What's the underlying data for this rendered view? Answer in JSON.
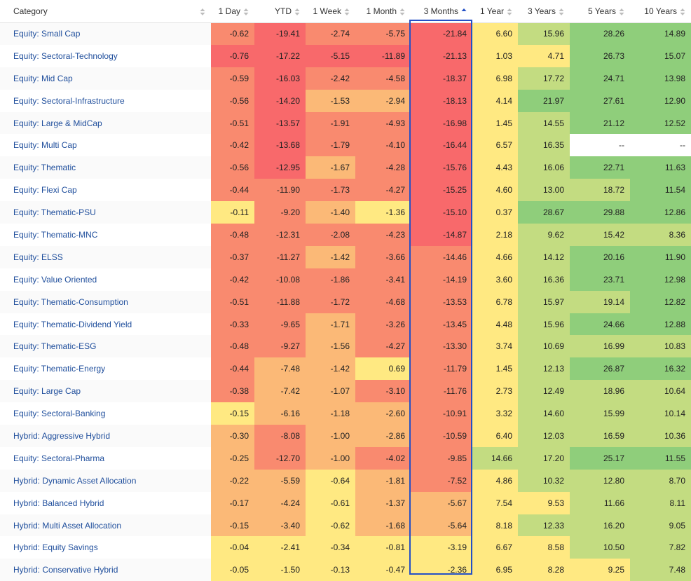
{
  "columns": [
    {
      "key": "category",
      "label": "Category",
      "sort": "none"
    },
    {
      "key": "d1",
      "label": "1 Day",
      "sort": "none"
    },
    {
      "key": "ytd",
      "label": "YTD",
      "sort": "none"
    },
    {
      "key": "w1",
      "label": "1 Week",
      "sort": "none"
    },
    {
      "key": "m1",
      "label": "1 Month",
      "sort": "none"
    },
    {
      "key": "m3",
      "label": "3 Months",
      "sort": "asc"
    },
    {
      "key": "y1",
      "label": "1 Year",
      "sort": "none"
    },
    {
      "key": "y3",
      "label": "3 Years",
      "sort": "none"
    },
    {
      "key": "y5",
      "label": "5 Years",
      "sort": "none"
    },
    {
      "key": "y10",
      "label": "10 Years",
      "sort": "none"
    }
  ],
  "heat_colors": {
    "red": "#f8696b",
    "red_mid": "#f98a6f",
    "orange": "#fbb977",
    "yellow": "#ffe982",
    "lightgreen": "#c3dc81",
    "green": "#8fce7b",
    "blank": "#ffffff"
  },
  "rows": [
    {
      "category": "Equity: Small Cap",
      "cells": [
        {
          "v": "-0.62",
          "c": "red_mid"
        },
        {
          "v": "-19.41",
          "c": "red"
        },
        {
          "v": "-2.74",
          "c": "red_mid"
        },
        {
          "v": "-5.75",
          "c": "red_mid"
        },
        {
          "v": "-21.84",
          "c": "red"
        },
        {
          "v": "6.60",
          "c": "yellow"
        },
        {
          "v": "15.96",
          "c": "lightgreen"
        },
        {
          "v": "28.26",
          "c": "green"
        },
        {
          "v": "14.89",
          "c": "green"
        }
      ]
    },
    {
      "category": "Equity: Sectoral-Technology",
      "cells": [
        {
          "v": "-0.76",
          "c": "red"
        },
        {
          "v": "-17.22",
          "c": "red"
        },
        {
          "v": "-5.15",
          "c": "red"
        },
        {
          "v": "-11.89",
          "c": "red"
        },
        {
          "v": "-21.13",
          "c": "red"
        },
        {
          "v": "1.03",
          "c": "yellow"
        },
        {
          "v": "4.71",
          "c": "yellow"
        },
        {
          "v": "26.73",
          "c": "green"
        },
        {
          "v": "15.07",
          "c": "green"
        }
      ]
    },
    {
      "category": "Equity: Mid Cap",
      "cells": [
        {
          "v": "-0.59",
          "c": "red_mid"
        },
        {
          "v": "-16.03",
          "c": "red"
        },
        {
          "v": "-2.42",
          "c": "red_mid"
        },
        {
          "v": "-4.58",
          "c": "red_mid"
        },
        {
          "v": "-18.37",
          "c": "red"
        },
        {
          "v": "6.98",
          "c": "yellow"
        },
        {
          "v": "17.72",
          "c": "lightgreen"
        },
        {
          "v": "24.71",
          "c": "green"
        },
        {
          "v": "13.98",
          "c": "green"
        }
      ]
    },
    {
      "category": "Equity: Sectoral-Infrastructure",
      "cells": [
        {
          "v": "-0.56",
          "c": "red_mid"
        },
        {
          "v": "-14.20",
          "c": "red"
        },
        {
          "v": "-1.53",
          "c": "orange"
        },
        {
          "v": "-2.94",
          "c": "orange"
        },
        {
          "v": "-18.13",
          "c": "red"
        },
        {
          "v": "4.14",
          "c": "yellow"
        },
        {
          "v": "21.97",
          "c": "green"
        },
        {
          "v": "27.61",
          "c": "green"
        },
        {
          "v": "12.90",
          "c": "green"
        }
      ]
    },
    {
      "category": "Equity: Large & MidCap",
      "cells": [
        {
          "v": "-0.51",
          "c": "red_mid"
        },
        {
          "v": "-13.57",
          "c": "red"
        },
        {
          "v": "-1.91",
          "c": "red_mid"
        },
        {
          "v": "-4.93",
          "c": "red_mid"
        },
        {
          "v": "-16.98",
          "c": "red"
        },
        {
          "v": "1.45",
          "c": "yellow"
        },
        {
          "v": "14.55",
          "c": "lightgreen"
        },
        {
          "v": "21.12",
          "c": "green"
        },
        {
          "v": "12.52",
          "c": "green"
        }
      ]
    },
    {
      "category": "Equity: Multi Cap",
      "cells": [
        {
          "v": "-0.42",
          "c": "red_mid"
        },
        {
          "v": "-13.68",
          "c": "red"
        },
        {
          "v": "-1.79",
          "c": "red_mid"
        },
        {
          "v": "-4.10",
          "c": "red_mid"
        },
        {
          "v": "-16.44",
          "c": "red"
        },
        {
          "v": "6.57",
          "c": "yellow"
        },
        {
          "v": "16.35",
          "c": "lightgreen"
        },
        {
          "v": "--",
          "c": "blank"
        },
        {
          "v": "--",
          "c": "blank"
        }
      ]
    },
    {
      "category": "Equity: Thematic",
      "cells": [
        {
          "v": "-0.56",
          "c": "red_mid"
        },
        {
          "v": "-12.95",
          "c": "red"
        },
        {
          "v": "-1.67",
          "c": "orange"
        },
        {
          "v": "-4.28",
          "c": "red_mid"
        },
        {
          "v": "-15.76",
          "c": "red"
        },
        {
          "v": "4.43",
          "c": "yellow"
        },
        {
          "v": "16.06",
          "c": "lightgreen"
        },
        {
          "v": "22.71",
          "c": "green"
        },
        {
          "v": "11.63",
          "c": "green"
        }
      ]
    },
    {
      "category": "Equity: Flexi Cap",
      "cells": [
        {
          "v": "-0.44",
          "c": "red_mid"
        },
        {
          "v": "-11.90",
          "c": "red_mid"
        },
        {
          "v": "-1.73",
          "c": "red_mid"
        },
        {
          "v": "-4.27",
          "c": "red_mid"
        },
        {
          "v": "-15.25",
          "c": "red"
        },
        {
          "v": "4.60",
          "c": "yellow"
        },
        {
          "v": "13.00",
          "c": "lightgreen"
        },
        {
          "v": "18.72",
          "c": "lightgreen"
        },
        {
          "v": "11.54",
          "c": "green"
        }
      ]
    },
    {
      "category": "Equity: Thematic-PSU",
      "cells": [
        {
          "v": "-0.11",
          "c": "yellow"
        },
        {
          "v": "-9.20",
          "c": "red_mid"
        },
        {
          "v": "-1.40",
          "c": "orange"
        },
        {
          "v": "-1.36",
          "c": "yellow"
        },
        {
          "v": "-15.10",
          "c": "red"
        },
        {
          "v": "0.37",
          "c": "yellow"
        },
        {
          "v": "28.67",
          "c": "green"
        },
        {
          "v": "29.88",
          "c": "green"
        },
        {
          "v": "12.86",
          "c": "green"
        }
      ]
    },
    {
      "category": "Equity: Thematic-MNC",
      "cells": [
        {
          "v": "-0.48",
          "c": "red_mid"
        },
        {
          "v": "-12.31",
          "c": "red_mid"
        },
        {
          "v": "-2.08",
          "c": "red_mid"
        },
        {
          "v": "-4.23",
          "c": "red_mid"
        },
        {
          "v": "-14.87",
          "c": "red"
        },
        {
          "v": "2.18",
          "c": "yellow"
        },
        {
          "v": "9.62",
          "c": "lightgreen"
        },
        {
          "v": "15.42",
          "c": "lightgreen"
        },
        {
          "v": "8.36",
          "c": "lightgreen"
        }
      ]
    },
    {
      "category": "Equity: ELSS",
      "cells": [
        {
          "v": "-0.37",
          "c": "red_mid"
        },
        {
          "v": "-11.27",
          "c": "red_mid"
        },
        {
          "v": "-1.42",
          "c": "orange"
        },
        {
          "v": "-3.66",
          "c": "red_mid"
        },
        {
          "v": "-14.46",
          "c": "red_mid"
        },
        {
          "v": "4.66",
          "c": "yellow"
        },
        {
          "v": "14.12",
          "c": "lightgreen"
        },
        {
          "v": "20.16",
          "c": "green"
        },
        {
          "v": "11.90",
          "c": "green"
        }
      ]
    },
    {
      "category": "Equity: Value Oriented",
      "cells": [
        {
          "v": "-0.42",
          "c": "red_mid"
        },
        {
          "v": "-10.08",
          "c": "red_mid"
        },
        {
          "v": "-1.86",
          "c": "red_mid"
        },
        {
          "v": "-3.41",
          "c": "red_mid"
        },
        {
          "v": "-14.19",
          "c": "red_mid"
        },
        {
          "v": "3.60",
          "c": "yellow"
        },
        {
          "v": "16.36",
          "c": "lightgreen"
        },
        {
          "v": "23.71",
          "c": "green"
        },
        {
          "v": "12.98",
          "c": "green"
        }
      ]
    },
    {
      "category": "Equity: Thematic-Consumption",
      "cells": [
        {
          "v": "-0.51",
          "c": "red_mid"
        },
        {
          "v": "-11.88",
          "c": "red_mid"
        },
        {
          "v": "-1.72",
          "c": "red_mid"
        },
        {
          "v": "-4.68",
          "c": "red_mid"
        },
        {
          "v": "-13.53",
          "c": "red_mid"
        },
        {
          "v": "6.78",
          "c": "yellow"
        },
        {
          "v": "15.97",
          "c": "lightgreen"
        },
        {
          "v": "19.14",
          "c": "lightgreen"
        },
        {
          "v": "12.82",
          "c": "green"
        }
      ]
    },
    {
      "category": "Equity: Thematic-Dividend Yield",
      "cells": [
        {
          "v": "-0.33",
          "c": "red_mid"
        },
        {
          "v": "-9.65",
          "c": "red_mid"
        },
        {
          "v": "-1.71",
          "c": "orange"
        },
        {
          "v": "-3.26",
          "c": "red_mid"
        },
        {
          "v": "-13.45",
          "c": "red_mid"
        },
        {
          "v": "4.48",
          "c": "yellow"
        },
        {
          "v": "15.96",
          "c": "lightgreen"
        },
        {
          "v": "24.66",
          "c": "green"
        },
        {
          "v": "12.88",
          "c": "green"
        }
      ]
    },
    {
      "category": "Equity: Thematic-ESG",
      "cells": [
        {
          "v": "-0.48",
          "c": "red_mid"
        },
        {
          "v": "-9.27",
          "c": "red_mid"
        },
        {
          "v": "-1.56",
          "c": "orange"
        },
        {
          "v": "-4.27",
          "c": "red_mid"
        },
        {
          "v": "-13.30",
          "c": "red_mid"
        },
        {
          "v": "3.74",
          "c": "yellow"
        },
        {
          "v": "10.69",
          "c": "lightgreen"
        },
        {
          "v": "16.99",
          "c": "lightgreen"
        },
        {
          "v": "10.83",
          "c": "lightgreen"
        }
      ]
    },
    {
      "category": "Equity: Thematic-Energy",
      "cells": [
        {
          "v": "-0.44",
          "c": "red_mid"
        },
        {
          "v": "-7.48",
          "c": "orange"
        },
        {
          "v": "-1.42",
          "c": "orange"
        },
        {
          "v": "0.69",
          "c": "yellow"
        },
        {
          "v": "-11.79",
          "c": "red_mid"
        },
        {
          "v": "1.45",
          "c": "yellow"
        },
        {
          "v": "12.13",
          "c": "lightgreen"
        },
        {
          "v": "26.87",
          "c": "green"
        },
        {
          "v": "16.32",
          "c": "green"
        }
      ]
    },
    {
      "category": "Equity: Large Cap",
      "cells": [
        {
          "v": "-0.38",
          "c": "red_mid"
        },
        {
          "v": "-7.42",
          "c": "orange"
        },
        {
          "v": "-1.07",
          "c": "orange"
        },
        {
          "v": "-3.10",
          "c": "red_mid"
        },
        {
          "v": "-11.76",
          "c": "red_mid"
        },
        {
          "v": "2.73",
          "c": "yellow"
        },
        {
          "v": "12.49",
          "c": "lightgreen"
        },
        {
          "v": "18.96",
          "c": "lightgreen"
        },
        {
          "v": "10.64",
          "c": "lightgreen"
        }
      ]
    },
    {
      "category": "Equity: Sectoral-Banking",
      "cells": [
        {
          "v": "-0.15",
          "c": "yellow"
        },
        {
          "v": "-6.16",
          "c": "orange"
        },
        {
          "v": "-1.18",
          "c": "orange"
        },
        {
          "v": "-2.60",
          "c": "orange"
        },
        {
          "v": "-10.91",
          "c": "red_mid"
        },
        {
          "v": "3.32",
          "c": "yellow"
        },
        {
          "v": "14.60",
          "c": "lightgreen"
        },
        {
          "v": "15.99",
          "c": "lightgreen"
        },
        {
          "v": "10.14",
          "c": "lightgreen"
        }
      ]
    },
    {
      "category": "Hybrid: Aggressive Hybrid",
      "cells": [
        {
          "v": "-0.30",
          "c": "orange"
        },
        {
          "v": "-8.08",
          "c": "red_mid"
        },
        {
          "v": "-1.00",
          "c": "orange"
        },
        {
          "v": "-2.86",
          "c": "orange"
        },
        {
          "v": "-10.59",
          "c": "red_mid"
        },
        {
          "v": "6.40",
          "c": "yellow"
        },
        {
          "v": "12.03",
          "c": "lightgreen"
        },
        {
          "v": "16.59",
          "c": "lightgreen"
        },
        {
          "v": "10.36",
          "c": "lightgreen"
        }
      ]
    },
    {
      "category": "Equity: Sectoral-Pharma",
      "cells": [
        {
          "v": "-0.25",
          "c": "orange"
        },
        {
          "v": "-12.70",
          "c": "red_mid"
        },
        {
          "v": "-1.00",
          "c": "orange"
        },
        {
          "v": "-4.02",
          "c": "red_mid"
        },
        {
          "v": "-9.85",
          "c": "red_mid"
        },
        {
          "v": "14.66",
          "c": "lightgreen"
        },
        {
          "v": "17.20",
          "c": "lightgreen"
        },
        {
          "v": "25.17",
          "c": "green"
        },
        {
          "v": "11.55",
          "c": "green"
        }
      ]
    },
    {
      "category": "Hybrid: Dynamic Asset Allocation",
      "cells": [
        {
          "v": "-0.22",
          "c": "orange"
        },
        {
          "v": "-5.59",
          "c": "orange"
        },
        {
          "v": "-0.64",
          "c": "yellow"
        },
        {
          "v": "-1.81",
          "c": "orange"
        },
        {
          "v": "-7.52",
          "c": "red_mid"
        },
        {
          "v": "4.86",
          "c": "yellow"
        },
        {
          "v": "10.32",
          "c": "lightgreen"
        },
        {
          "v": "12.80",
          "c": "lightgreen"
        },
        {
          "v": "8.70",
          "c": "lightgreen"
        }
      ]
    },
    {
      "category": "Hybrid: Balanced Hybrid",
      "cells": [
        {
          "v": "-0.17",
          "c": "orange"
        },
        {
          "v": "-4.24",
          "c": "orange"
        },
        {
          "v": "-0.61",
          "c": "yellow"
        },
        {
          "v": "-1.37",
          "c": "orange"
        },
        {
          "v": "-5.67",
          "c": "orange"
        },
        {
          "v": "7.54",
          "c": "yellow"
        },
        {
          "v": "9.53",
          "c": "yellow"
        },
        {
          "v": "11.66",
          "c": "lightgreen"
        },
        {
          "v": "8.11",
          "c": "lightgreen"
        }
      ]
    },
    {
      "category": "Hybrid: Multi Asset Allocation",
      "cells": [
        {
          "v": "-0.15",
          "c": "orange"
        },
        {
          "v": "-3.40",
          "c": "orange"
        },
        {
          "v": "-0.62",
          "c": "yellow"
        },
        {
          "v": "-1.68",
          "c": "orange"
        },
        {
          "v": "-5.64",
          "c": "orange"
        },
        {
          "v": "8.18",
          "c": "yellow"
        },
        {
          "v": "12.33",
          "c": "lightgreen"
        },
        {
          "v": "16.20",
          "c": "lightgreen"
        },
        {
          "v": "9.05",
          "c": "lightgreen"
        }
      ]
    },
    {
      "category": "Hybrid: Equity Savings",
      "cells": [
        {
          "v": "-0.04",
          "c": "yellow"
        },
        {
          "v": "-2.41",
          "c": "yellow"
        },
        {
          "v": "-0.34",
          "c": "yellow"
        },
        {
          "v": "-0.81",
          "c": "yellow"
        },
        {
          "v": "-3.19",
          "c": "yellow"
        },
        {
          "v": "6.67",
          "c": "yellow"
        },
        {
          "v": "8.58",
          "c": "yellow"
        },
        {
          "v": "10.50",
          "c": "lightgreen"
        },
        {
          "v": "7.82",
          "c": "lightgreen"
        }
      ]
    },
    {
      "category": "Hybrid: Conservative Hybrid",
      "cells": [
        {
          "v": "-0.05",
          "c": "yellow"
        },
        {
          "v": "-1.50",
          "c": "yellow"
        },
        {
          "v": "-0.13",
          "c": "yellow"
        },
        {
          "v": "-0.47",
          "c": "yellow"
        },
        {
          "v": "-2.36",
          "c": "yellow"
        },
        {
          "v": "6.95",
          "c": "yellow"
        },
        {
          "v": "8.28",
          "c": "yellow"
        },
        {
          "v": "9.25",
          "c": "yellow"
        },
        {
          "v": "7.48",
          "c": "lightgreen"
        }
      ]
    }
  ]
}
